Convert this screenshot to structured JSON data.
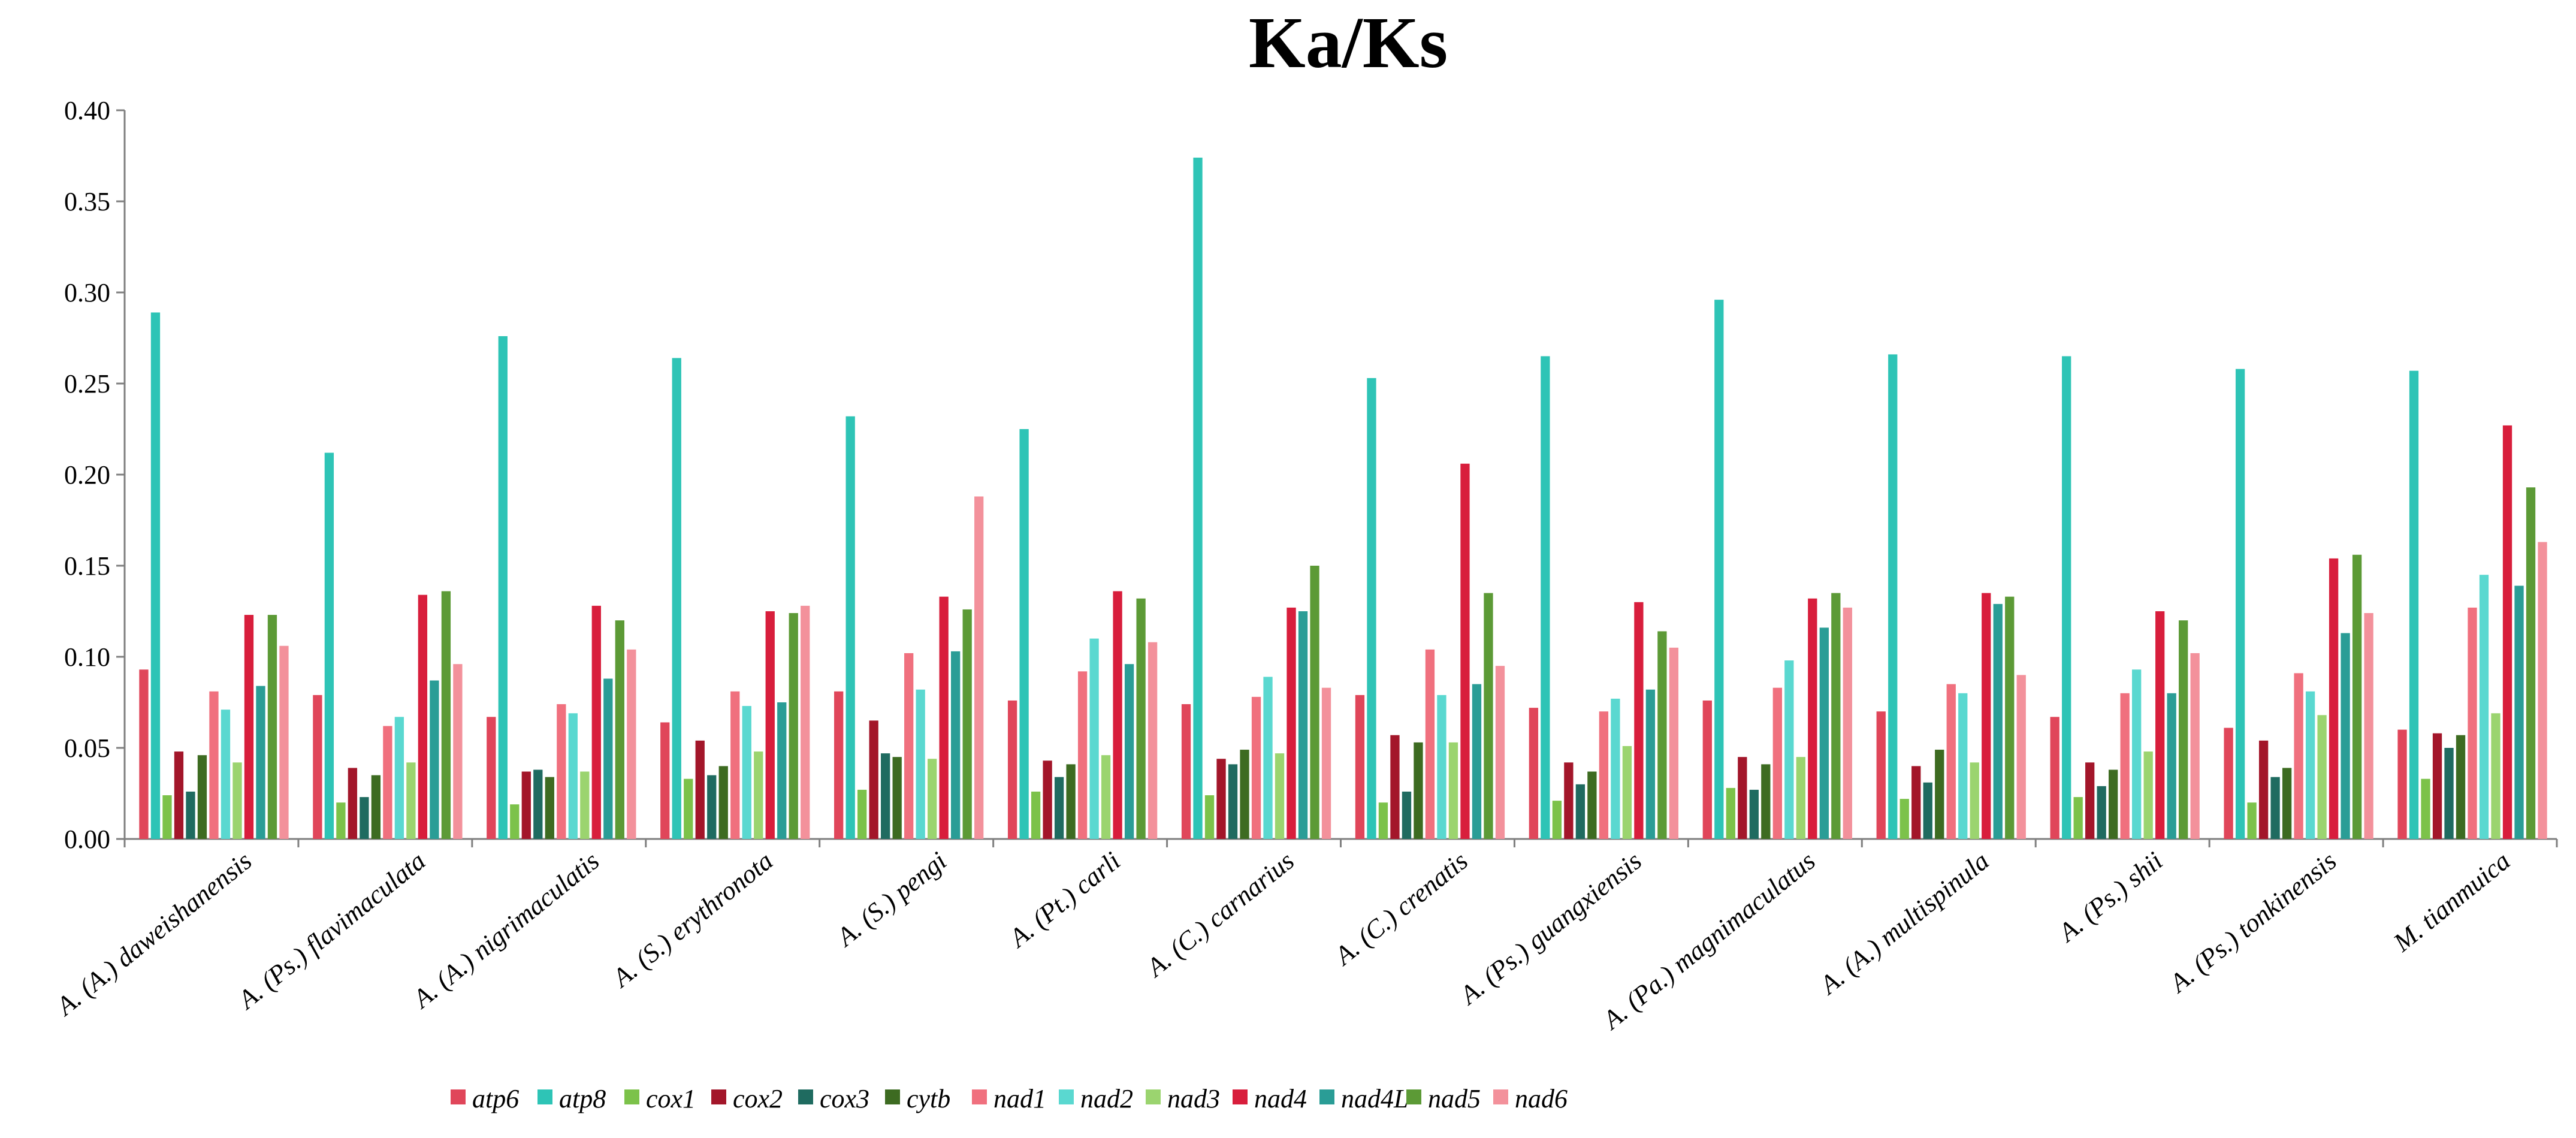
{
  "chart_data": {
    "type": "bar",
    "title": "Ka/Ks",
    "xlabel": "",
    "ylabel": "",
    "ylim": [
      0,
      0.4
    ],
    "yticks": [
      "0.00",
      "0.05",
      "0.10",
      "0.15",
      "0.20",
      "0.25",
      "0.30",
      "0.35",
      "0.40"
    ],
    "grid": false,
    "legend_position": "bottom-center",
    "categories": [
      "A. (A.) daweishanensis",
      "A. (Ps.) flavimaculata",
      "A. (A.) nigrimaculatis",
      "A. (S.) erythronota",
      "A. (S.) pengi",
      "A. (Pt.) carli",
      "A. (C.) carnarius",
      "A. (C.) crenatis",
      "A. (Ps.) guangxiensis",
      "A. (Pa.) magnimaculatus",
      "A. (A.) multispinula",
      "A. (Ps.) shii",
      "A. (Ps.) tonkinensis",
      "M. tianmuica"
    ],
    "series": [
      {
        "name": "atp6",
        "color": "#e0465a",
        "values": [
          0.093,
          0.079,
          0.067,
          0.064,
          0.081,
          0.076,
          0.074,
          0.079,
          0.072,
          0.076,
          0.07,
          0.067,
          0.061,
          0.06
        ]
      },
      {
        "name": "atp8",
        "color": "#2ec4b6",
        "values": [
          0.289,
          0.212,
          0.276,
          0.264,
          0.232,
          0.225,
          0.374,
          0.253,
          0.265,
          0.296,
          0.266,
          0.265,
          0.258,
          0.257
        ]
      },
      {
        "name": "cox1",
        "color": "#7cc24a",
        "values": [
          0.024,
          0.02,
          0.019,
          0.033,
          0.027,
          0.026,
          0.024,
          0.02,
          0.021,
          0.028,
          0.022,
          0.023,
          0.02,
          0.033
        ]
      },
      {
        "name": "cox2",
        "color": "#a3162a",
        "values": [
          0.048,
          0.039,
          0.037,
          0.054,
          0.065,
          0.043,
          0.044,
          0.057,
          0.042,
          0.045,
          0.04,
          0.042,
          0.054,
          0.058
        ]
      },
      {
        "name": "cox3",
        "color": "#1f6b60",
        "values": [
          0.026,
          0.023,
          0.038,
          0.035,
          0.047,
          0.034,
          0.041,
          0.026,
          0.03,
          0.027,
          0.031,
          0.029,
          0.034,
          0.05
        ]
      },
      {
        "name": "cytb",
        "color": "#3d6b21",
        "values": [
          0.046,
          0.035,
          0.034,
          0.04,
          0.045,
          0.041,
          0.049,
          0.053,
          0.037,
          0.041,
          0.049,
          0.038,
          0.039,
          0.057
        ]
      },
      {
        "name": "nad1",
        "color": "#f0707e",
        "values": [
          0.081,
          0.062,
          0.074,
          0.081,
          0.102,
          0.092,
          0.078,
          0.104,
          0.07,
          0.083,
          0.085,
          0.08,
          0.091,
          0.127
        ]
      },
      {
        "name": "nad2",
        "color": "#5ad8d0",
        "values": [
          0.071,
          0.067,
          0.069,
          0.073,
          0.082,
          0.11,
          0.089,
          0.079,
          0.077,
          0.098,
          0.08,
          0.093,
          0.081,
          0.145
        ]
      },
      {
        "name": "nad3",
        "color": "#9bd46f",
        "values": [
          0.042,
          0.042,
          0.037,
          0.048,
          0.044,
          0.046,
          0.047,
          0.053,
          0.051,
          0.045,
          0.042,
          0.048,
          0.068,
          0.069
        ]
      },
      {
        "name": "nad4",
        "color": "#d81e3c",
        "values": [
          0.123,
          0.134,
          0.128,
          0.125,
          0.133,
          0.136,
          0.127,
          0.206,
          0.13,
          0.132,
          0.135,
          0.125,
          0.154,
          0.227
        ]
      },
      {
        "name": "nad4L",
        "color": "#2a9d96",
        "values": [
          0.084,
          0.087,
          0.088,
          0.075,
          0.103,
          0.096,
          0.125,
          0.085,
          0.082,
          0.116,
          0.129,
          0.08,
          0.113,
          0.139
        ]
      },
      {
        "name": "nad5",
        "color": "#5c9a36",
        "values": [
          0.123,
          0.136,
          0.12,
          0.124,
          0.126,
          0.132,
          0.15,
          0.135,
          0.114,
          0.135,
          0.133,
          0.12,
          0.156,
          0.193
        ]
      },
      {
        "name": "nad6",
        "color": "#f3919b",
        "values": [
          0.106,
          0.096,
          0.104,
          0.128,
          0.188,
          0.108,
          0.083,
          0.095,
          0.105,
          0.127,
          0.09,
          0.102,
          0.124,
          0.163
        ]
      }
    ]
  }
}
